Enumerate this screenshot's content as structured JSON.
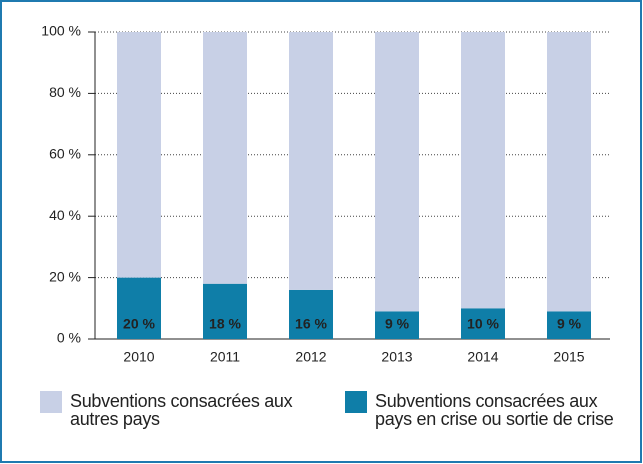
{
  "chart_data": {
    "type": "stacked_bar",
    "categories": [
      "2010",
      "2011",
      "2012",
      "2013",
      "2014",
      "2015"
    ],
    "series": [
      {
        "name": "Subventions consacrées aux pays en crise ou sortie de crise",
        "color": "#0f7ea8",
        "values": [
          20,
          18,
          16,
          9,
          10,
          9
        ],
        "value_labels": [
          "20 %",
          "18 %",
          "16 %",
          "9 %",
          "10 %",
          "9 %"
        ]
      },
      {
        "name": "Subventions consacrées aux autres pays",
        "color": "#c8d0e6",
        "values": [
          80,
          82,
          84,
          91,
          90,
          91
        ]
      }
    ],
    "legend_order": [
      1,
      0
    ],
    "ylim": [
      0,
      100
    ],
    "yticks": [
      {
        "value": 0,
        "label": "0 %"
      },
      {
        "value": 20,
        "label": "20 %"
      },
      {
        "value": 40,
        "label": "40 %"
      },
      {
        "value": 60,
        "label": "60 %"
      },
      {
        "value": 80,
        "label": "80 %"
      },
      {
        "value": 100,
        "label": "100 %"
      }
    ],
    "grid": true
  }
}
